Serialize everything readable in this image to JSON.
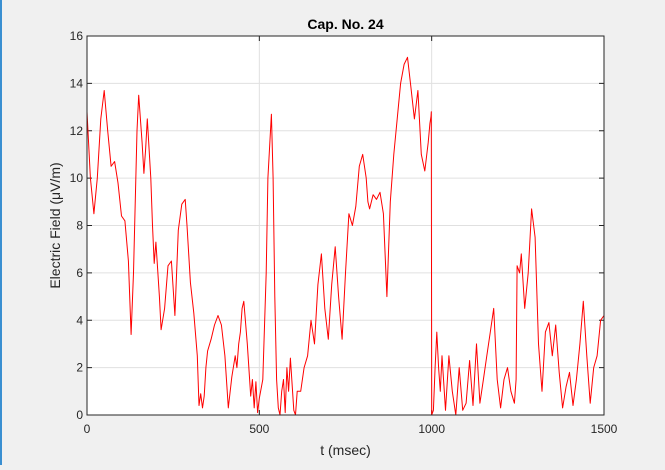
{
  "chart_data": {
    "type": "line",
    "title": "Cap. No. 24",
    "xlabel": "t (msec)",
    "ylabel": "Electric Field (μV/m)",
    "xlim": [
      0,
      1500
    ],
    "ylim": [
      0,
      16
    ],
    "xticks": [
      0,
      500,
      1000,
      1500
    ],
    "yticks": [
      0,
      2,
      4,
      6,
      8,
      10,
      12,
      14,
      16
    ],
    "grid": true,
    "series": [
      {
        "color": "#ff0000",
        "x": [
          0,
          10,
          20,
          30,
          40,
          50,
          60,
          70,
          80,
          90,
          100,
          110,
          120,
          128,
          135,
          145,
          150,
          160,
          165,
          170,
          175,
          185,
          190,
          195,
          200,
          210,
          215,
          225,
          235,
          245,
          255,
          265,
          275,
          285,
          290,
          300,
          310,
          320,
          325,
          330,
          335,
          340,
          345,
          350,
          360,
          370,
          380,
          390,
          400,
          410,
          420,
          430,
          435,
          440,
          445,
          450,
          455,
          465,
          475,
          480,
          485,
          490,
          495,
          500,
          510,
          520,
          525,
          535,
          540,
          545,
          550,
          555,
          560,
          565,
          570,
          575,
          580,
          585,
          590,
          600,
          605,
          610,
          620,
          630,
          640,
          650,
          660,
          670,
          680,
          690,
          700,
          710,
          720,
          730,
          740,
          750,
          760,
          770,
          780,
          790,
          800,
          810,
          815,
          820,
          830,
          840,
          850,
          860,
          870,
          880,
          890,
          900,
          910,
          920,
          930,
          940,
          950,
          960,
          970,
          980,
          990,
          995,
          998,
          999,
          1000,
          1005,
          1010,
          1015,
          1020,
          1025,
          1030,
          1040,
          1050,
          1060,
          1070,
          1080,
          1090,
          1100,
          1110,
          1120,
          1130,
          1140,
          1150,
          1160,
          1170,
          1180,
          1190,
          1200,
          1210,
          1220,
          1230,
          1240,
          1245,
          1248,
          1255,
          1260,
          1270,
          1280,
          1290,
          1300,
          1310,
          1320,
          1330,
          1340,
          1350,
          1360,
          1370,
          1380,
          1390,
          1400,
          1410,
          1420,
          1430,
          1440,
          1450,
          1460,
          1470,
          1480,
          1490,
          1500
        ],
        "y": [
          12.8,
          10.0,
          8.5,
          10.0,
          12.5,
          13.7,
          12.0,
          10.5,
          10.7,
          9.8,
          8.4,
          8.2,
          6.5,
          3.4,
          6.0,
          12.0,
          13.5,
          11.5,
          10.2,
          11.2,
          12.5,
          10.0,
          8.0,
          6.4,
          7.3,
          5.0,
          3.6,
          4.5,
          6.3,
          6.5,
          4.2,
          7.8,
          8.9,
          9.1,
          8.0,
          5.6,
          4.3,
          2.5,
          0.4,
          0.9,
          0.3,
          0.8,
          2.0,
          2.7,
          3.2,
          3.8,
          4.2,
          3.8,
          2.5,
          0.3,
          1.6,
          2.5,
          2.0,
          3.0,
          3.5,
          4.5,
          4.8,
          3.0,
          0.8,
          1.5,
          0.3,
          1.4,
          0.1,
          0.7,
          1.5,
          6.0,
          10.0,
          12.7,
          10.0,
          5.0,
          1.5,
          0.3,
          0.0,
          1.0,
          1.5,
          0.1,
          2.0,
          1.0,
          2.4,
          0.2,
          0.0,
          1.0,
          1.0,
          2.0,
          2.5,
          4.0,
          3.0,
          5.5,
          6.8,
          4.5,
          3.2,
          5.5,
          7.1,
          5.0,
          3.2,
          6.0,
          8.5,
          8.0,
          8.8,
          10.5,
          11.0,
          10.0,
          9.0,
          8.7,
          9.3,
          9.1,
          9.4,
          8.5,
          5.0,
          9.0,
          11.0,
          12.5,
          14.0,
          14.8,
          15.1,
          13.8,
          12.5,
          13.7,
          11.0,
          10.3,
          11.5,
          12.3,
          12.6,
          12.8,
          0.0,
          0.2,
          2.0,
          3.5,
          2.0,
          1.0,
          2.5,
          0.2,
          2.5,
          1.0,
          0.0,
          2.0,
          0.2,
          0.5,
          2.3,
          0.4,
          3.0,
          0.5,
          1.5,
          2.5,
          3.5,
          4.5,
          1.5,
          0.3,
          1.5,
          2.0,
          1.0,
          0.5,
          1.5,
          6.3,
          6.0,
          6.8,
          4.5,
          6.0,
          8.7,
          7.5,
          3.0,
          1.0,
          3.5,
          3.9,
          2.5,
          3.8,
          1.8,
          0.3,
          1.2,
          1.8,
          0.4,
          1.5,
          3.0,
          4.8,
          2.5,
          0.5,
          2.0,
          2.5,
          4.0,
          4.2
        ]
      }
    ]
  }
}
